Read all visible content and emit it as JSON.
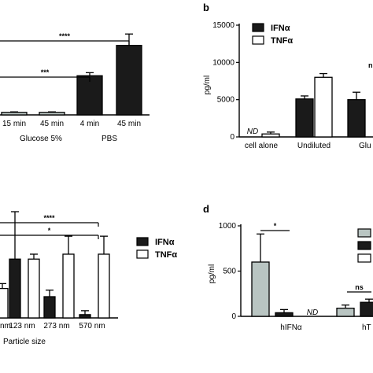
{
  "chart_data": [
    {
      "id": "a",
      "type": "bar",
      "panel_label": "",
      "categories": [
        "15 min",
        "45 min",
        "4 min",
        "45 min"
      ],
      "groups": [
        {
          "label": "Glucose 5%",
          "indices": [
            0,
            1
          ]
        },
        {
          "label": "PBS",
          "indices": [
            2,
            3
          ]
        }
      ],
      "values": [
        0.1,
        0.1,
        1.55,
        2.75
      ],
      "errors": [
        0.02,
        0.02,
        0.12,
        0.45
      ],
      "colors": [
        "#b9c5c2",
        "#b9c5c2",
        "#1a1a1a",
        "#1a1a1a"
      ],
      "significance": [
        {
          "label": "****",
          "from": 0,
          "to": 3
        },
        {
          "label": "***",
          "from": 0,
          "to": 2
        }
      ]
    },
    {
      "id": "b",
      "type": "bar",
      "panel_label": "b",
      "ylabel": "pg/ml",
      "ylim": [
        0,
        15000
      ],
      "yticks": [
        "0",
        "5000",
        "10000",
        "15000"
      ],
      "categories": [
        "cell alone",
        "Undiluted",
        "Glu"
      ],
      "series": [
        {
          "name": "IFNα",
          "values": [
            0,
            5100,
            5000
          ],
          "errors": [
            0,
            400,
            1000
          ],
          "color": "#1a1a1a"
        },
        {
          "name": "TNFα",
          "values": [
            400,
            8000,
            null
          ],
          "errors": [
            250,
            500,
            null
          ],
          "color": "#ffffff"
        }
      ],
      "annotations": [
        "ND"
      ],
      "significance": [
        {
          "label": "n",
          "category": 2
        }
      ]
    },
    {
      "id": "c",
      "type": "bar",
      "panel_label": "",
      "xlabel": "Particle size",
      "categories": [
        "nm",
        "123 nm",
        "273 nm",
        "570 nm"
      ],
      "series": [
        {
          "name": "IFNα",
          "values": [
            null,
            1.8,
            0.65,
            0.1
          ],
          "errors": [
            null,
            1.45,
            0.2,
            0.12
          ],
          "color": "#1a1a1a"
        },
        {
          "name": "TNFα",
          "values": [
            0.9,
            1.8,
            1.95,
            1.95
          ],
          "errors": [
            0.15,
            0.15,
            0.55,
            0.55
          ],
          "color": "#ffffff"
        }
      ],
      "significance": [
        {
          "label": "****",
          "to": 3
        },
        {
          "label": "*",
          "to": 3
        }
      ]
    },
    {
      "id": "d",
      "type": "bar",
      "panel_label": "d",
      "ylabel": "pg/ml",
      "ylim": [
        0,
        1000
      ],
      "yticks": [
        "0",
        "500",
        "1000"
      ],
      "categories": [
        "hIFNα",
        "hT"
      ],
      "series": [
        {
          "values": [
            600,
            90
          ],
          "errors": [
            310,
            35
          ],
          "color": "#b9c5c2"
        },
        {
          "values": [
            40,
            155
          ],
          "errors": [
            35,
            35
          ],
          "color": "#1a1a1a"
        },
        {
          "values": [
            null,
            null
          ],
          "errors": [
            null,
            null
          ],
          "color": "#ffffff"
        }
      ],
      "annotations": [
        "ND"
      ],
      "significance": [
        {
          "label": "*",
          "category": 0
        },
        {
          "label": "ns",
          "category": 1
        }
      ]
    }
  ]
}
